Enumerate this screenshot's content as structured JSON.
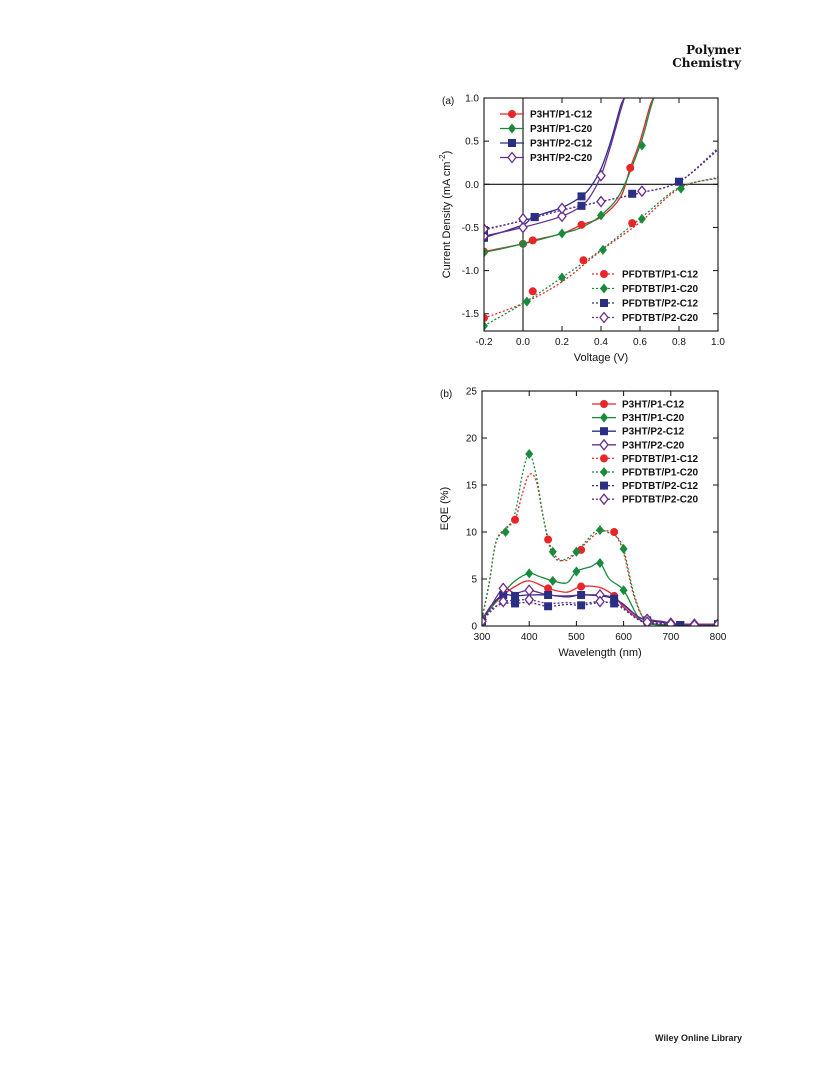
{
  "journal": {
    "line1": "Polymer",
    "line2": "Chemistry"
  },
  "footer": "Wiley Online Library",
  "chart_data": [
    {
      "type": "line",
      "panel_label": "(a)",
      "xlabel": "Voltage (V)",
      "ylabel": "Current Density (mA cm-2)",
      "xlim": [
        -0.2,
        1.0
      ],
      "ylim": [
        -1.7,
        1.0
      ],
      "xticks": [
        -0.2,
        0.0,
        0.2,
        0.4,
        0.6,
        0.8,
        1.0
      ],
      "xtick_labels": [
        "-0.2",
        "0.0",
        "0.2",
        "0.4",
        "0.6",
        "0.8",
        "1.0"
      ],
      "yticks": [
        -1.5,
        -1.0,
        -0.5,
        0.0,
        0.5,
        1.0
      ],
      "ytick_labels": [
        "-1.5",
        "-1.0",
        "-0.5",
        "0.0",
        "0.5",
        "1.0"
      ],
      "legend_top": [
        "P3HT/P1-C12",
        "P3HT/P1-C20",
        "P3HT/P2-C12",
        "P3HT/P2-C20"
      ],
      "legend_bottom": [
        "PFDTBT/P1-C12",
        "PFDTBT/P1-C20",
        "PFDTBT/P2-C12",
        "PFDTBT/P2-C20"
      ],
      "series": [
        {
          "name": "P3HT/P1-C12",
          "color": "#e8262a",
          "marker": "circle",
          "dash": false,
          "x": [
            -0.2,
            0.0,
            0.05,
            0.2,
            0.3,
            0.4,
            0.5,
            0.55,
            0.6,
            0.65,
            0.67
          ],
          "y": [
            -0.78,
            -0.69,
            -0.65,
            -0.57,
            -0.47,
            -0.38,
            -0.15,
            0.19,
            0.5,
            0.9,
            1.0
          ],
          "mx": [
            -0.2,
            0.0,
            0.05,
            0.3,
            0.55
          ],
          "my": [
            -0.78,
            -0.69,
            -0.65,
            -0.47,
            0.19
          ]
        },
        {
          "name": "P3HT/P1-C20",
          "color": "#1a8a3c",
          "marker": "diamond",
          "dash": false,
          "x": [
            -0.2,
            0.0,
            0.2,
            0.3,
            0.4,
            0.5,
            0.6,
            0.65,
            0.67
          ],
          "y": [
            -0.79,
            -0.69,
            -0.57,
            -0.5,
            -0.36,
            -0.1,
            0.45,
            0.85,
            1.0
          ],
          "mx": [
            -0.2,
            0.0,
            0.2,
            0.4,
            0.61
          ],
          "my": [
            -0.79,
            -0.69,
            -0.57,
            -0.36,
            0.45
          ]
        },
        {
          "name": "P3HT/P2-C12",
          "color": "#2b2f84",
          "marker": "square",
          "dash": false,
          "x": [
            -0.2,
            0.0,
            0.05,
            0.2,
            0.3,
            0.35,
            0.4,
            0.45,
            0.5,
            0.52
          ],
          "y": [
            -0.62,
            -0.47,
            -0.38,
            -0.27,
            -0.14,
            -0.02,
            0.18,
            0.5,
            0.9,
            1.0
          ],
          "mx": [
            -0.2,
            0.06,
            0.3
          ],
          "my": [
            -0.62,
            -0.38,
            -0.14
          ]
        },
        {
          "name": "P3HT/P2-C20",
          "color": "#6a2d8f",
          "marker": "diamond-open",
          "dash": false,
          "x": [
            -0.2,
            0.0,
            0.2,
            0.3,
            0.35,
            0.4,
            0.45,
            0.5,
            0.52
          ],
          "y": [
            -0.6,
            -0.5,
            -0.37,
            -0.25,
            -0.12,
            0.1,
            0.45,
            0.85,
            1.0
          ],
          "mx": [
            -0.2,
            0.0,
            0.2,
            0.4
          ],
          "my": [
            -0.6,
            -0.5,
            -0.37,
            0.1
          ]
        },
        {
          "name": "PFDTBT/P1-C12",
          "color": "#e8262a",
          "marker": "circle",
          "dash": true,
          "x": [
            -0.2,
            0.0,
            0.2,
            0.4,
            0.6,
            0.8,
            1.0
          ],
          "y": [
            -1.55,
            -1.38,
            -1.13,
            -0.77,
            -0.44,
            -0.05,
            0.08
          ],
          "mx": [
            -0.2,
            0.05,
            0.31,
            0.56
          ],
          "my": [
            -1.55,
            -1.24,
            -0.88,
            -0.45
          ]
        },
        {
          "name": "PFDTBT/P1-C20",
          "color": "#1a8a3c",
          "marker": "diamond",
          "dash": true,
          "x": [
            -0.2,
            0.0,
            0.2,
            0.4,
            0.6,
            0.8,
            1.0
          ],
          "y": [
            -1.64,
            -1.38,
            -1.08,
            -0.76,
            -0.4,
            -0.04,
            0.07
          ],
          "mx": [
            -0.2,
            0.02,
            0.2,
            0.41,
            0.61,
            0.81
          ],
          "my": [
            -1.64,
            -1.36,
            -1.08,
            -0.76,
            -0.4,
            -0.05
          ]
        },
        {
          "name": "PFDTBT/P2-C12",
          "color": "#2b2f84",
          "marker": "square",
          "dash": true,
          "x": [
            -0.2,
            0.0,
            0.2,
            0.4,
            0.6,
            0.8,
            1.0
          ],
          "y": [
            -0.53,
            -0.42,
            -0.3,
            -0.2,
            -0.1,
            0.03,
            0.4
          ],
          "mx": [
            -0.2,
            0.06,
            0.3,
            0.56,
            0.8
          ],
          "my": [
            -0.53,
            -0.38,
            -0.25,
            -0.11,
            0.03
          ]
        },
        {
          "name": "PFDTBT/P2-C20",
          "color": "#6a2d8f",
          "marker": "diamond-open",
          "dash": true,
          "x": [
            -0.2,
            0.0,
            0.2,
            0.4,
            0.6,
            0.8,
            1.0
          ],
          "y": [
            -0.52,
            -0.42,
            -0.3,
            -0.2,
            -0.1,
            0.03,
            0.42
          ],
          "mx": [
            -0.2,
            0.0,
            0.2,
            0.4,
            0.61
          ],
          "my": [
            -0.52,
            -0.4,
            -0.28,
            -0.2,
            -0.08
          ]
        }
      ]
    },
    {
      "type": "line",
      "panel_label": "(b)",
      "xlabel": "Wavelength (nm)",
      "ylabel": "EQE (%)",
      "xlim": [
        300,
        800
      ],
      "ylim": [
        0,
        25
      ],
      "xticks": [
        300,
        400,
        500,
        600,
        700,
        800
      ],
      "xtick_labels": [
        "300",
        "400",
        "500",
        "600",
        "700",
        "800"
      ],
      "yticks": [
        0,
        5,
        10,
        15,
        20,
        25
      ],
      "ytick_labels": [
        "0",
        "5",
        "10",
        "15",
        "20",
        "25"
      ],
      "legend": [
        "P3HT/P1-C12",
        "P3HT/P1-C20",
        "P3HT/P2-C12",
        "P3HT/P2-C20",
        "PFDTBT/P1-C12",
        "PFDTBT/P1-C20",
        "PFDTBT/P2-C12",
        "PFDTBT/P2-C20"
      ],
      "series": [
        {
          "name": "P3HT/P1-C12",
          "color": "#e8262a",
          "marker": "circle",
          "dash": false,
          "x": [
            300,
            320,
            345,
            370,
            400,
            440,
            480,
            510,
            550,
            580,
            600,
            630,
            650,
            680,
            700,
            720,
            750,
            800
          ],
          "y": [
            0.6,
            2.0,
            3.3,
            4.2,
            4.8,
            4.0,
            3.6,
            4.2,
            4.1,
            3.2,
            2.0,
            0.8,
            0.3,
            0.15,
            0.1,
            0.1,
            0.1,
            0.1
          ],
          "mx": [
            300,
            440,
            510,
            580,
            650,
            720,
            800
          ],
          "my": [
            0.6,
            4.0,
            4.2,
            3.2,
            0.3,
            0.1,
            0.1
          ]
        },
        {
          "name": "P3HT/P1-C20",
          "color": "#1a8a3c",
          "marker": "diamond",
          "dash": false,
          "x": [
            300,
            320,
            345,
            370,
            400,
            420,
            450,
            480,
            500,
            530,
            550,
            570,
            600,
            630,
            650,
            680,
            700,
            750,
            800
          ],
          "y": [
            0.6,
            2.0,
            3.5,
            4.8,
            5.6,
            5.3,
            4.8,
            4.6,
            5.8,
            6.3,
            6.7,
            5.0,
            3.8,
            1.0,
            0.3,
            0.1,
            0.1,
            0.1,
            0.1
          ],
          "mx": [
            300,
            400,
            450,
            500,
            550,
            600,
            650,
            700,
            750,
            800
          ],
          "my": [
            0.6,
            5.6,
            4.8,
            5.8,
            6.7,
            3.8,
            0.3,
            0.1,
            0.1,
            0.1
          ]
        },
        {
          "name": "P3HT/P2-C12",
          "color": "#2b2f84",
          "marker": "square",
          "dash": false,
          "x": [
            300,
            320,
            345,
            370,
            400,
            440,
            480,
            510,
            550,
            580,
            600,
            630,
            650,
            680,
            700,
            720,
            750,
            800
          ],
          "y": [
            0.7,
            2.2,
            3.3,
            3.2,
            3.3,
            3.3,
            3.1,
            3.3,
            3.2,
            2.9,
            2.3,
            1.0,
            0.6,
            0.4,
            0.2,
            0.1,
            0.1,
            0.2
          ],
          "mx": [
            300,
            345,
            370,
            440,
            510,
            580,
            650,
            720,
            800
          ],
          "my": [
            0.7,
            3.3,
            3.2,
            3.3,
            3.3,
            2.9,
            0.6,
            0.1,
            0.2
          ]
        },
        {
          "name": "P3HT/P2-C20",
          "color": "#6a2d8f",
          "marker": "diamond-open",
          "dash": false,
          "x": [
            300,
            320,
            345,
            370,
            400,
            440,
            480,
            510,
            550,
            580,
            600,
            630,
            650,
            680,
            700,
            720,
            750,
            800
          ],
          "y": [
            0.7,
            2.2,
            4.0,
            3.5,
            3.8,
            3.3,
            3.2,
            3.3,
            3.3,
            3.0,
            2.2,
            1.0,
            0.7,
            0.5,
            0.3,
            0.2,
            0.2,
            0.2
          ],
          "mx": [
            300,
            345,
            400,
            550,
            650,
            700,
            750,
            800
          ],
          "my": [
            0.7,
            4.0,
            3.8,
            3.3,
            0.7,
            0.3,
            0.2,
            0.2
          ]
        },
        {
          "name": "PFDTBT/P1-C12",
          "color": "#e8262a",
          "marker": "circle",
          "dash": true,
          "x": [
            300,
            315,
            330,
            350,
            370,
            385,
            400,
            415,
            430,
            445,
            460,
            480,
            500,
            520,
            545,
            570,
            585,
            600,
            620,
            640,
            660,
            700,
            750,
            800
          ],
          "y": [
            0.8,
            4.5,
            9.0,
            10.4,
            11.3,
            14.0,
            16.1,
            15.4,
            11.5,
            8.5,
            7.2,
            7.0,
            7.8,
            8.8,
            9.9,
            10.1,
            9.5,
            7.8,
            3.5,
            1.0,
            0.4,
            0.2,
            0.2,
            0.2
          ],
          "mx": [
            300,
            370,
            440,
            510,
            580
          ],
          "my": [
            0.8,
            11.3,
            9.2,
            8.1,
            10.0
          ]
        },
        {
          "name": "PFDTBT/P1-C20",
          "color": "#1a8a3c",
          "marker": "diamond",
          "dash": true,
          "x": [
            300,
            315,
            330,
            350,
            370,
            385,
            400,
            415,
            430,
            445,
            460,
            480,
            500,
            520,
            545,
            570,
            585,
            600,
            620,
            640,
            660,
            700,
            750,
            800
          ],
          "y": [
            0.8,
            4.5,
            9.0,
            10.2,
            12.0,
            16.0,
            18.3,
            16.0,
            11.5,
            8.2,
            7.0,
            7.2,
            7.9,
            9.0,
            10.2,
            9.9,
            9.5,
            8.2,
            3.8,
            1.0,
            0.3,
            0.1,
            0.1,
            0.1
          ],
          "mx": [
            300,
            350,
            400,
            450,
            500,
            550,
            600,
            650,
            700,
            750,
            800
          ],
          "my": [
            0.8,
            10.0,
            18.3,
            7.9,
            7.9,
            10.2,
            8.2,
            0.5,
            0.1,
            0.1,
            0.1
          ]
        },
        {
          "name": "PFDTBT/P2-C12",
          "color": "#2b2f84",
          "marker": "square",
          "dash": true,
          "x": [
            300,
            320,
            345,
            370,
            400,
            440,
            480,
            510,
            550,
            580,
            600,
            630,
            650,
            680,
            700,
            720,
            750,
            800
          ],
          "y": [
            0.5,
            1.8,
            2.4,
            2.4,
            2.5,
            2.1,
            2.3,
            2.2,
            2.5,
            2.4,
            1.8,
            0.7,
            0.3,
            0.2,
            0.1,
            0.1,
            0.1,
            0.1
          ],
          "mx": [
            300,
            370,
            440,
            510,
            580,
            720,
            800
          ],
          "my": [
            0.5,
            2.4,
            2.1,
            2.2,
            2.4,
            0.1,
            0.1
          ]
        },
        {
          "name": "PFDTBT/P2-C20",
          "color": "#6a2d8f",
          "marker": "diamond-open",
          "dash": true,
          "x": [
            300,
            320,
            345,
            370,
            400,
            440,
            480,
            510,
            550,
            580,
            600,
            630,
            650,
            680,
            700,
            720,
            750,
            800
          ],
          "y": [
            0.5,
            1.6,
            2.6,
            2.7,
            2.8,
            2.4,
            2.5,
            2.4,
            2.6,
            2.4,
            1.9,
            0.8,
            0.4,
            0.3,
            0.2,
            0.1,
            0.1,
            0.2
          ],
          "mx": [
            300,
            345,
            400,
            550,
            650,
            700,
            750,
            800
          ],
          "my": [
            0.5,
            2.6,
            2.8,
            2.6,
            0.4,
            0.2,
            0.1,
            0.2
          ]
        }
      ]
    }
  ]
}
